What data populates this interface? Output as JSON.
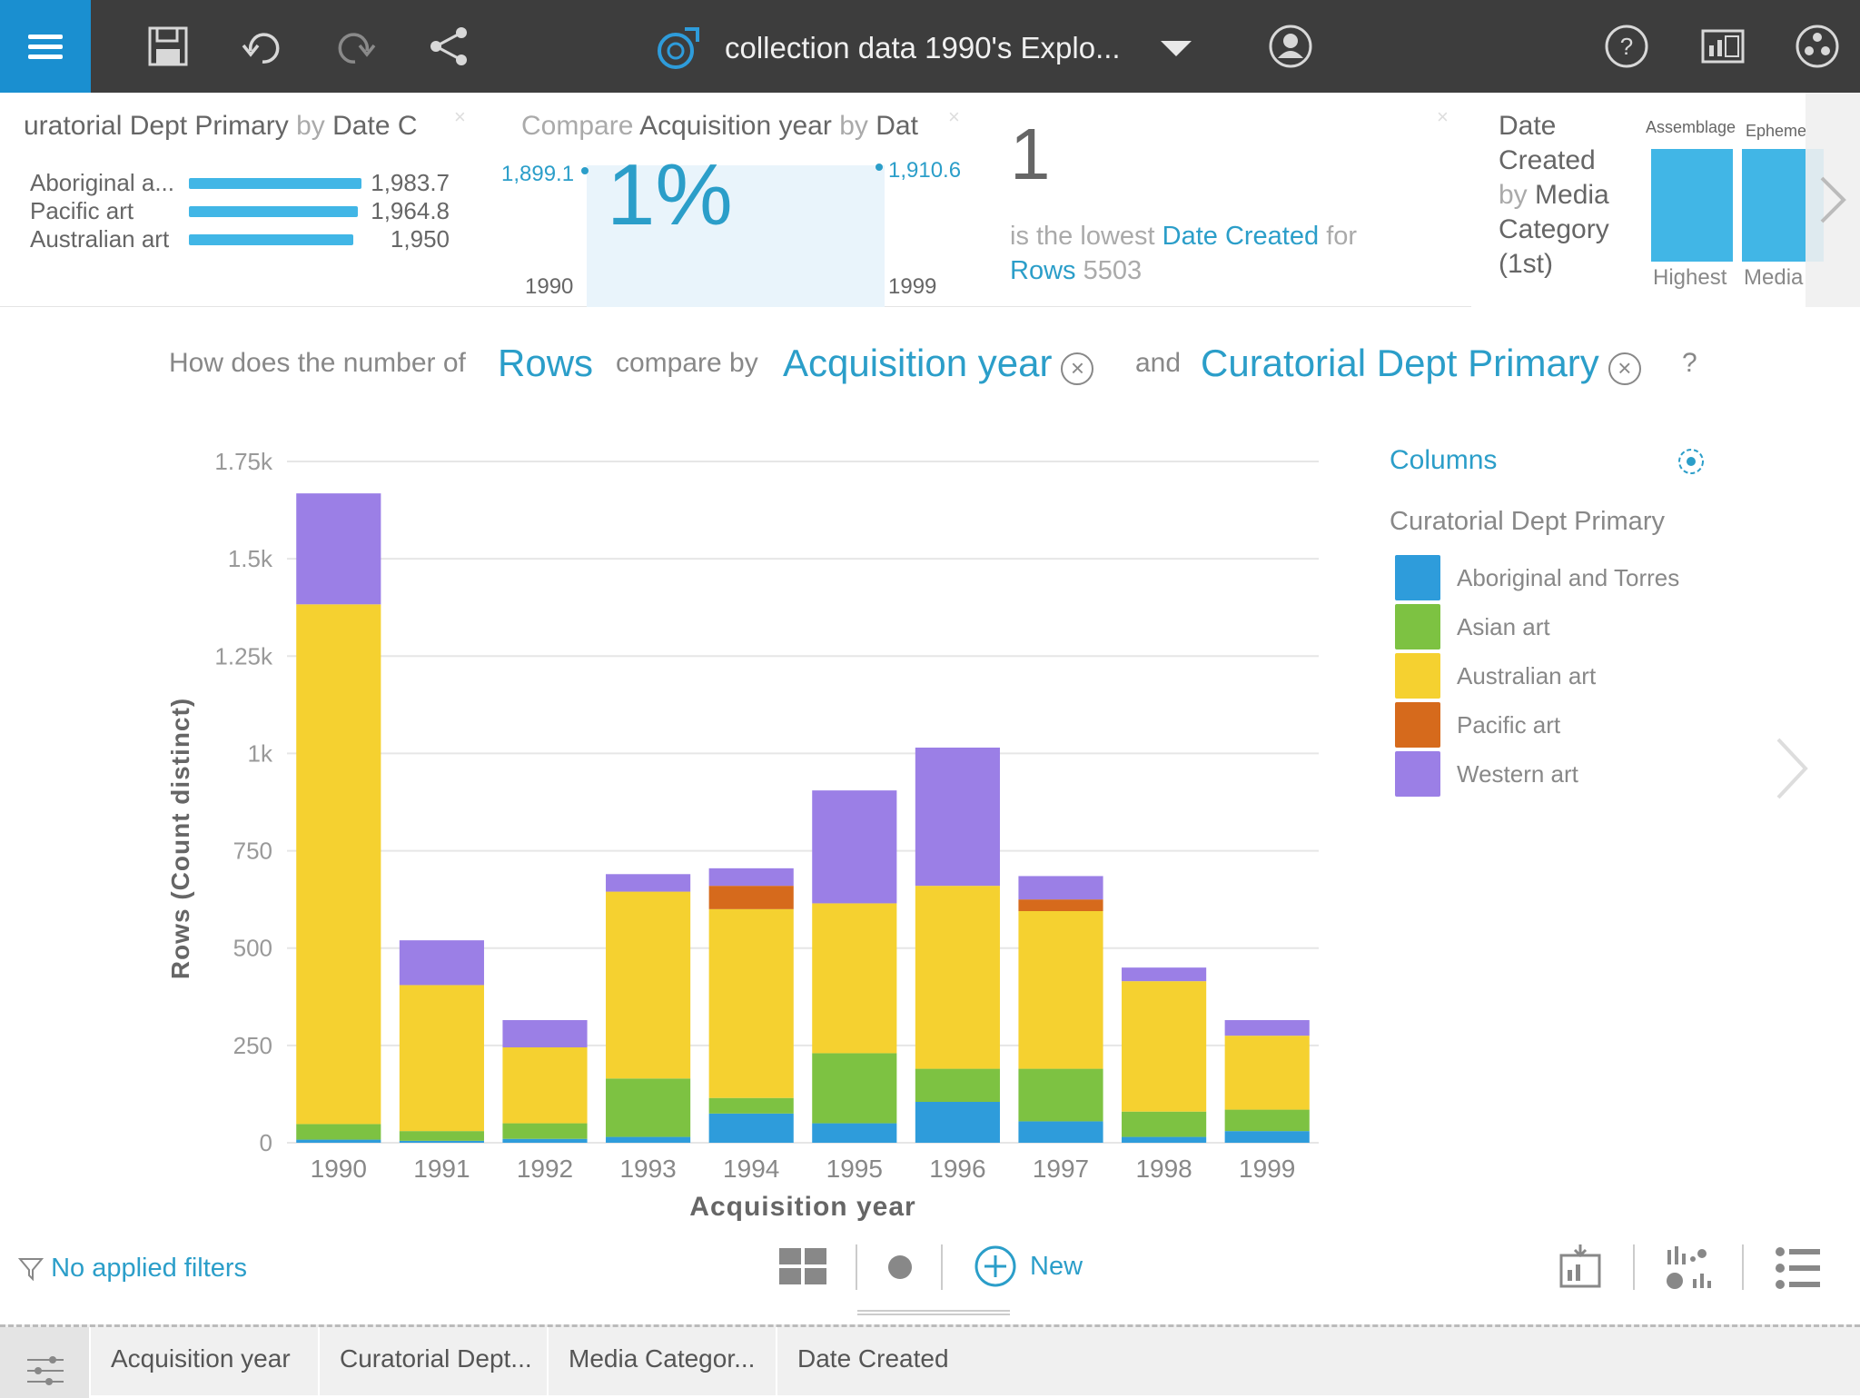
{
  "toolbar": {
    "title": "collection data 1990's Explo..."
  },
  "cards": {
    "card1": {
      "title_a": "uratorial Dept Primary",
      "title_b": "by",
      "title_c": "Date C",
      "rows": [
        {
          "label": "Aboriginal a...",
          "value": "1,983.7",
          "num": 1983.7
        },
        {
          "label": "Pacific art",
          "value": "1,964.8",
          "num": 1964.8
        },
        {
          "label": "Australian art",
          "value": "1,950",
          "num": 1950
        }
      ]
    },
    "card2": {
      "title_a": "Compare",
      "title_b": "Acquisition year",
      "title_c": "by",
      "title_d": "Dat",
      "left_value": "1,899.1",
      "right_value": "1,910.6",
      "percent": "1%",
      "start_label": "1990",
      "end_label": "1999"
    },
    "card3": {
      "big_number": "1",
      "line1_a": "is the lowest",
      "line1_b": "Date Created",
      "line1_c": "for",
      "line2_a": "Rows",
      "line2_b": "5503"
    },
    "card4": {
      "title_lines": [
        "Date",
        "Created"
      ],
      "title_by": "by",
      "title_media": "Media",
      "title_rest": [
        "Category",
        "(1st)"
      ],
      "bar1_label": "Assemblage",
      "bar2_label": "Epheme",
      "foot1": "Highest",
      "foot2": "Media"
    }
  },
  "question": {
    "prefix": "How does the number of",
    "measure": "Rows",
    "compare": "compare by",
    "dim1": "Acquisition year",
    "and": "and",
    "dim2": "Curatorial Dept Primary",
    "help": "?"
  },
  "legend": {
    "title": "Columns",
    "subtitle": "Curatorial Dept Primary",
    "items": [
      {
        "label": "Aboriginal and Torres",
        "color": "#2e9cdb"
      },
      {
        "label": "Asian art",
        "color": "#7dc242"
      },
      {
        "label": "Australian art",
        "color": "#f5d130"
      },
      {
        "label": "Pacific art",
        "color": "#d66a1c"
      },
      {
        "label": "Western art",
        "color": "#9b7fe6"
      }
    ]
  },
  "chart_data": {
    "type": "bar",
    "stacked": true,
    "categories": [
      "1990",
      "1991",
      "1992",
      "1993",
      "1994",
      "1995",
      "1996",
      "1997",
      "1998",
      "1999"
    ],
    "series": [
      {
        "name": "Aboriginal and Torres",
        "color": "#2e9cdb",
        "values": [
          8,
          5,
          10,
          15,
          75,
          50,
          105,
          55,
          15,
          30
        ]
      },
      {
        "name": "Asian art",
        "color": "#7dc242",
        "values": [
          40,
          25,
          40,
          150,
          40,
          180,
          85,
          135,
          65,
          55
        ]
      },
      {
        "name": "Australian art",
        "color": "#f5d130",
        "values": [
          1335,
          375,
          195,
          480,
          485,
          385,
          470,
          405,
          335,
          190
        ]
      },
      {
        "name": "Pacific art",
        "color": "#d66a1c",
        "values": [
          0,
          0,
          0,
          0,
          60,
          0,
          0,
          30,
          0,
          0
        ]
      },
      {
        "name": "Western art",
        "color": "#9b7fe6",
        "values": [
          285,
          115,
          70,
          45,
          45,
          290,
          355,
          60,
          35,
          40
        ]
      }
    ],
    "xlabel": "Acquisition year",
    "ylabel": "Rows (Count distinct)",
    "ylim": [
      0,
      1750
    ],
    "yticks": [
      0,
      250,
      500,
      750,
      1000,
      1250,
      1500,
      1750
    ],
    "ytick_labels": [
      "0",
      "250",
      "500",
      "750",
      "1k",
      "1.25k",
      "1.5k",
      "1.75k"
    ],
    "grid": true,
    "legend_position": "right"
  },
  "bottom": {
    "filters": "No applied filters",
    "new_label": "New"
  },
  "tabs": [
    "Acquisition year",
    "Curatorial Dept...",
    "Media Categor...",
    "Date Created"
  ]
}
